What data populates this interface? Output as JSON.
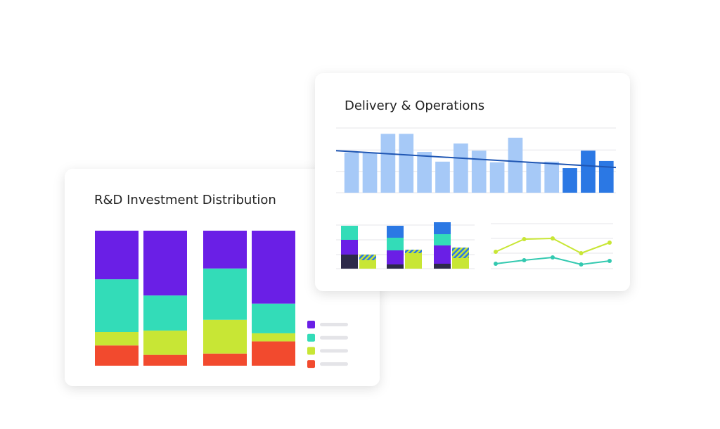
{
  "chart_data": [
    {
      "type": "stacked-bar",
      "title": "R&D Investment Distribution",
      "ylim": [
        0,
        100
      ],
      "legend": true,
      "series": [
        {
          "color": "#f24a2e",
          "values": [
            15,
            8,
            9,
            18
          ]
        },
        {
          "color": "#c8e635",
          "values": [
            10,
            18,
            25,
            6
          ]
        },
        {
          "color": "#33dcb8",
          "values": [
            39,
            26,
            38,
            22
          ]
        },
        {
          "color": "#6a1fe6",
          "values": [
            36,
            48,
            28,
            54
          ]
        }
      ]
    },
    {
      "type": "bar",
      "title": "Delivery & Operations",
      "ylim": [
        0,
        100
      ],
      "yticks": [
        0,
        33,
        66,
        100
      ],
      "grid": true,
      "values": [
        62,
        62,
        91,
        91,
        63,
        48,
        76,
        65,
        47,
        85,
        46,
        48,
        38,
        65,
        49
      ],
      "colors": [
        "#a6c9f7",
        "#a6c9f7",
        "#a6c9f7",
        "#a6c9f7",
        "#a6c9f7",
        "#a6c9f7",
        "#a6c9f7",
        "#a6c9f7",
        "#a6c9f7",
        "#a6c9f7",
        "#a6c9f7",
        "#a6c9f7",
        "#2b78e4",
        "#2b78e4",
        "#2b78e4"
      ],
      "trend": {
        "color": "#1f56b3",
        "values": [
          65,
          39
        ]
      }
    },
    {
      "type": "grouped-stacked-bar",
      "ylim": [
        0,
        62
      ],
      "yticks": [
        0,
        20,
        41,
        62
      ],
      "grid": true,
      "stacks": [
        {
          "series": [
            {
              "color": "#2d2a4a",
              "values": [
                20,
                6,
                7
              ]
            },
            {
              "color": "#6a1fe6",
              "values": [
                21,
                20,
                26
              ]
            },
            {
              "color": "#33dcb8",
              "values": [
                20,
                18,
                16
              ]
            },
            {
              "color": "#2b78e4",
              "values": [
                0,
                17,
                17
              ]
            }
          ]
        },
        {
          "series": [
            {
              "color": "#c8e635",
              "values": [
                12,
                22,
                15
              ]
            },
            {
              "color": "#c8e635",
              "hatch": "#2b78e4",
              "values": [
                8,
                5,
                15
              ]
            }
          ]
        }
      ]
    },
    {
      "type": "line",
      "ylim": [
        0,
        64
      ],
      "yticks": [
        0,
        22,
        43,
        64
      ],
      "grid": true,
      "series": [
        {
          "color": "#c8e635",
          "values": [
            24,
            42,
            43,
            22,
            37
          ]
        },
        {
          "color": "#33c9b0",
          "values": [
            7,
            12,
            16,
            6,
            11
          ]
        }
      ]
    }
  ]
}
